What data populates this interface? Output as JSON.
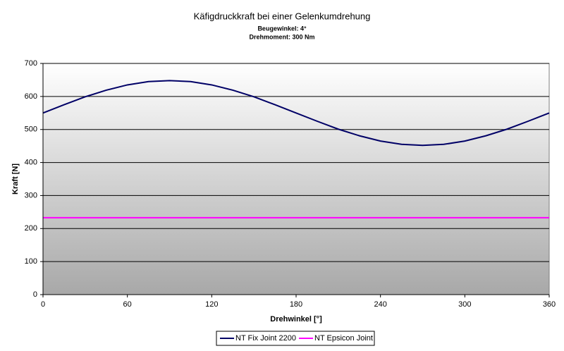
{
  "chart_data": {
    "type": "line",
    "title": "Käfigdruckkraft bei einer Gelenkumdrehung",
    "subtitles": [
      "Beugewinkel: 4°",
      "Drehmoment: 300 Nm"
    ],
    "x_label": "Drehwinkel [°]",
    "y_label": "Kraft [N]",
    "x": [
      0,
      15,
      30,
      45,
      60,
      75,
      90,
      105,
      120,
      135,
      150,
      165,
      180,
      195,
      210,
      225,
      240,
      255,
      270,
      285,
      300,
      315,
      330,
      345,
      360
    ],
    "series": [
      {
        "name": "NT Fix Joint 2200",
        "color": "#000066",
        "values": [
          550,
          575,
          599,
          619,
          635,
          645,
          648,
          645,
          635,
          619,
          599,
          575,
          550,
          525,
          501,
          481,
          465,
          455,
          452,
          455,
          465,
          481,
          501,
          525,
          550
        ]
      },
      {
        "name": "NT Epsicon Joint",
        "color": "#ff00ff",
        "values": [
          233,
          233,
          233,
          233,
          233,
          233,
          233,
          233,
          233,
          233,
          233,
          233,
          233,
          233,
          233,
          233,
          233,
          233,
          233,
          233,
          233,
          233,
          233,
          233,
          233
        ]
      }
    ],
    "xlim": [
      0,
      360
    ],
    "xticks": [
      0,
      60,
      120,
      180,
      240,
      300,
      360
    ],
    "ylim": [
      0,
      700
    ],
    "yticks": [
      0,
      100,
      200,
      300,
      400,
      500,
      600,
      700
    ],
    "grid": true,
    "legend": "bottom"
  }
}
